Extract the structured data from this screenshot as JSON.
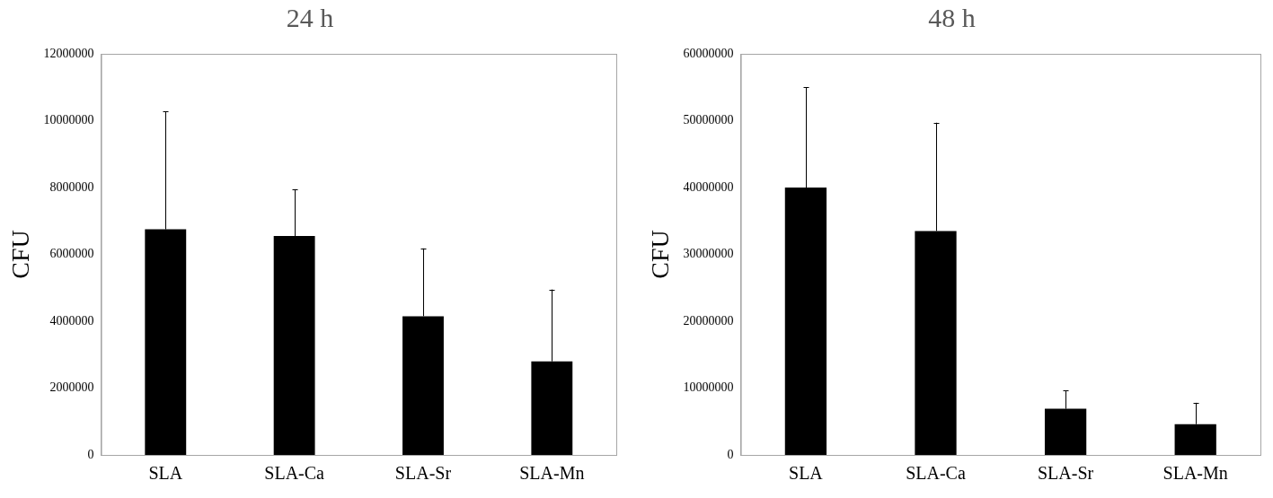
{
  "chart_data": [
    {
      "type": "bar",
      "title": "24 h",
      "ylabel": "CFU",
      "categories": [
        "SLA",
        "SLA-Ca",
        "SLA-Sr",
        "SLA-Mn"
      ],
      "values": [
        6750000,
        6550000,
        4150000,
        2800000
      ],
      "errors": [
        3530000,
        1400000,
        2030000,
        2150000
      ],
      "color": "#000000",
      "ylim": [
        0,
        12000000
      ],
      "yticks": [
        0,
        2000000,
        4000000,
        6000000,
        8000000,
        10000000,
        12000000
      ],
      "grid": false
    },
    {
      "type": "bar",
      "title": "48 h",
      "ylabel": "CFU",
      "categories": [
        "SLA",
        "SLA-Ca",
        "SLA-Sr",
        "SLA-Mn"
      ],
      "values": [
        40000000,
        33500000,
        6900000,
        4600000
      ],
      "errors": [
        15000000,
        16200000,
        2700000,
        3200000
      ],
      "color": "#000000",
      "ylim": [
        0,
        60000000
      ],
      "yticks": [
        0,
        10000000,
        20000000,
        30000000,
        40000000,
        50000000,
        60000000
      ],
      "grid": false
    }
  ]
}
